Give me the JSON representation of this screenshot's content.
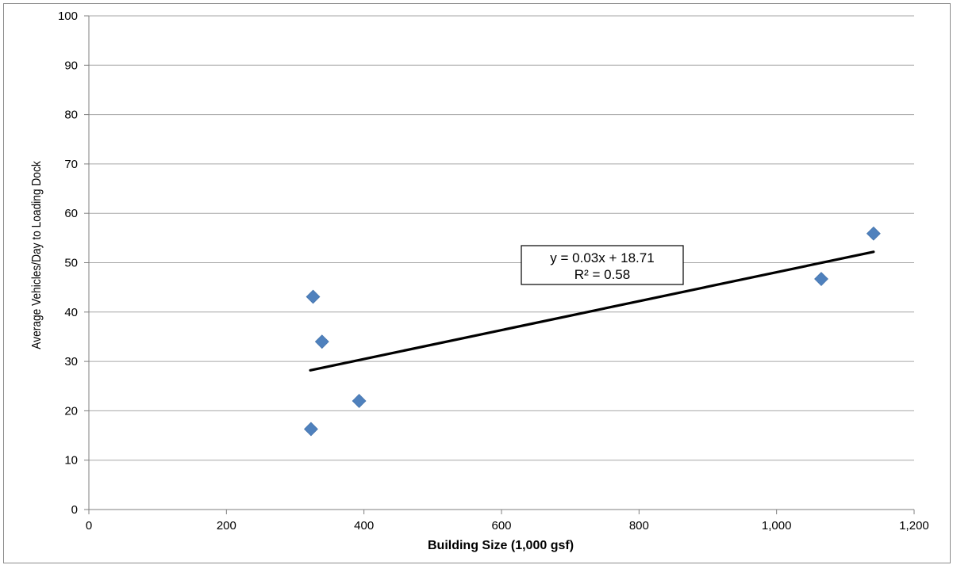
{
  "chart_data": {
    "type": "scatter",
    "title": "",
    "xlabel": "Building Size (1,000 gsf)",
    "ylabel": "Average Vehicles/Day to Loading Dock",
    "xlim": [
      0,
      1200
    ],
    "ylim": [
      0,
      100
    ],
    "x_ticks": [
      0,
      200,
      400,
      600,
      800,
      1000,
      1200
    ],
    "x_tick_labels": [
      "0",
      "200",
      "400",
      "600",
      "800",
      "1,000",
      "1,200"
    ],
    "y_ticks": [
      0,
      10,
      20,
      30,
      40,
      50,
      60,
      70,
      80,
      90,
      100
    ],
    "y_tick_labels": [
      "0",
      "10",
      "20",
      "30",
      "40",
      "50",
      "60",
      "70",
      "80",
      "90",
      "100"
    ],
    "grid": "horizontal",
    "marker": "diamond",
    "marker_color": "#4f81bd",
    "points": [
      {
        "x": 323,
        "y": 16.3
      },
      {
        "x": 326,
        "y": 43.1
      },
      {
        "x": 339,
        "y": 34.0
      },
      {
        "x": 393,
        "y": 22.0
      },
      {
        "x": 1065,
        "y": 46.7
      },
      {
        "x": 1141,
        "y": 55.9
      }
    ],
    "trendline": {
      "x_start": 322,
      "x_end": 1141,
      "y_start": 28.2,
      "y_end": 52.2,
      "color": "#000000",
      "equation": "y = 0.03x + 18.71",
      "r_squared": "R² = 0.58"
    }
  }
}
